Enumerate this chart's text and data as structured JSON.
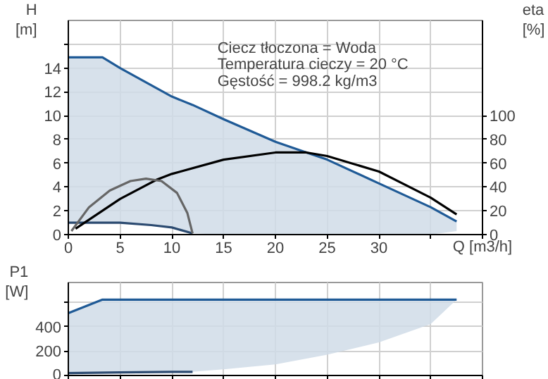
{
  "chart_data": [
    {
      "type": "line",
      "ylabel": "H\n[m]",
      "y2label": "eta\n[%]",
      "xlabel": "Q [m3/h]",
      "annotations": [
        "Ciecz tłoczona = Woda",
        "Temperatura cieczy = 20 °C",
        "Gęstość = 998.2 kg/m3"
      ],
      "xlim": [
        0,
        40
      ],
      "xticks": [
        0,
        5,
        10,
        15,
        20,
        25,
        30,
        {
          "value": 35,
          "label": null
        },
        {
          "value": 40,
          "label": null
        }
      ],
      "ylim": [
        0,
        18
      ],
      "yticks": [
        0,
        2,
        4,
        6,
        8,
        10,
        12,
        14,
        {
          "value": 16,
          "label": null
        }
      ],
      "y2lim": [
        0,
        180
      ],
      "y2ticks": [
        0,
        20,
        40,
        60,
        80,
        100
      ],
      "grid": true,
      "series": [
        {
          "color": "#1f5a96",
          "x": [
            0,
            3.3,
            5,
            10,
            12,
            15,
            20,
            23,
            25,
            30,
            35,
            37.5
          ],
          "values": [
            14.9,
            14.9,
            14.0,
            11.6,
            10.9,
            9.7,
            7.8,
            6.9,
            6.3,
            4.3,
            2.3,
            1.1
          ],
          "lower": [
            1.0,
            1.0,
            1.0,
            0.6,
            0.1,
            0,
            0,
            0,
            0,
            0,
            0,
            0.3
          ],
          "upper": [
            14.9,
            14.9,
            14.0,
            11.6,
            10.9,
            9.7,
            7.8,
            6.9,
            6.3,
            4.3,
            2.3,
            1.1
          ]
        },
        {
          "color": "#2b4a70",
          "x": [
            0,
            3.3,
            5,
            8,
            10,
            12
          ],
          "values": [
            1.0,
            1.0,
            1.0,
            0.8,
            0.6,
            0.1
          ]
        },
        {
          "color": "#000000",
          "axis": "y2",
          "x": [
            0.7,
            5,
            8.5,
            10,
            15,
            20,
            23,
            25,
            30,
            35,
            37.5
          ],
          "values": [
            5,
            30,
            46,
            51,
            63,
            69,
            69,
            66,
            53,
            31,
            17
          ]
        },
        {
          "color": "#666666",
          "axis": "y2",
          "x": [
            0.3,
            2,
            4,
            6,
            7.5,
            9,
            10.5,
            11.5,
            12
          ],
          "values": [
            3,
            23,
            37,
            45,
            47,
            45,
            35,
            18,
            1
          ]
        }
      ]
    },
    {
      "type": "line",
      "ylabel": "P1\n[W]",
      "xlim": [
        0,
        40
      ],
      "xticks": [
        0,
        5,
        10,
        15,
        20,
        25,
        30,
        35,
        40
      ],
      "ylim": [
        0,
        760
      ],
      "yticks": [
        0,
        200,
        400,
        {
          "value": 600,
          "label": null
        }
      ],
      "tick_labels": "y",
      "grid": true,
      "series": [
        {
          "color": "#1f5a96",
          "x": [
            0,
            3.3,
            5,
            10,
            12,
            15,
            20,
            25,
            30,
            35,
            37.5
          ],
          "values": [
            510,
            620,
            620,
            620,
            620,
            620,
            620,
            620,
            620,
            620,
            620
          ],
          "lower": [
            20,
            25,
            25,
            30,
            30,
            50,
            90,
            170,
            270,
            420,
            620
          ],
          "upper": [
            510,
            620,
            620,
            620,
            620,
            620,
            620,
            620,
            620,
            620,
            620
          ]
        },
        {
          "color": "#2b4a70",
          "x": [
            0,
            5,
            10,
            12
          ],
          "values": [
            20,
            25,
            30,
            30
          ]
        }
      ]
    }
  ]
}
